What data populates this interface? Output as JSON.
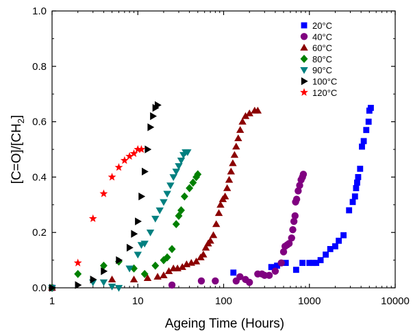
{
  "chart_data": {
    "type": "scatter",
    "title": "",
    "xlabel": "Ageing Time (Hours)",
    "ylabel_main": "[C=O]/[CH",
    "ylabel_sub": "2",
    "ylabel_end": "]",
    "xscale": "log",
    "xlim": [
      1,
      10000
    ],
    "ylim": [
      0.0,
      1.0
    ],
    "x_ticks": [
      1,
      10,
      100,
      1000,
      10000
    ],
    "x_tick_labels": [
      "1",
      "10",
      "100",
      "1000",
      "10000"
    ],
    "y_ticks": [
      0.0,
      0.2,
      0.4,
      0.6,
      0.8,
      1.0
    ],
    "y_tick_labels": [
      "0.0",
      "0.2",
      "0.4",
      "0.6",
      "0.8",
      "1.0"
    ],
    "grid": false,
    "legend_position": "top-right",
    "series": [
      {
        "name": "20°C",
        "color": "#0000ff",
        "marker": "square",
        "points": [
          [
            1,
            0.0
          ],
          [
            130,
            0.055
          ],
          [
            360,
            0.075
          ],
          [
            420,
            0.08
          ],
          [
            530,
            0.09
          ],
          [
            700,
            0.065
          ],
          [
            830,
            0.09
          ],
          [
            1000,
            0.09
          ],
          [
            1100,
            0.09
          ],
          [
            1200,
            0.09
          ],
          [
            1350,
            0.1
          ],
          [
            1550,
            0.12
          ],
          [
            1750,
            0.14
          ],
          [
            2000,
            0.15
          ],
          [
            2200,
            0.17
          ],
          [
            2500,
            0.19
          ],
          [
            2900,
            0.28
          ],
          [
            3200,
            0.31
          ],
          [
            3400,
            0.33
          ],
          [
            3500,
            0.36
          ],
          [
            3600,
            0.38
          ],
          [
            3700,
            0.4
          ],
          [
            3900,
            0.43
          ],
          [
            4100,
            0.51
          ],
          [
            4300,
            0.53
          ],
          [
            4600,
            0.57
          ],
          [
            4900,
            0.6
          ],
          [
            5000,
            0.64
          ],
          [
            5200,
            0.65
          ]
        ]
      },
      {
        "name": "40°C",
        "color": "#800080",
        "marker": "circle",
        "points": [
          [
            1,
            0.0
          ],
          [
            25,
            0.01
          ],
          [
            55,
            0.025
          ],
          [
            80,
            0.025
          ],
          [
            140,
            0.025
          ],
          [
            155,
            0.04
          ],
          [
            180,
            0.03
          ],
          [
            200,
            0.02
          ],
          [
            250,
            0.05
          ],
          [
            280,
            0.05
          ],
          [
            300,
            0.045
          ],
          [
            340,
            0.045
          ],
          [
            400,
            0.06
          ],
          [
            470,
            0.09
          ],
          [
            500,
            0.13
          ],
          [
            520,
            0.15
          ],
          [
            550,
            0.155
          ],
          [
            580,
            0.16
          ],
          [
            620,
            0.18
          ],
          [
            640,
            0.21
          ],
          [
            660,
            0.24
          ],
          [
            680,
            0.26
          ],
          [
            690,
            0.31
          ],
          [
            710,
            0.32
          ],
          [
            740,
            0.35
          ],
          [
            770,
            0.37
          ],
          [
            800,
            0.39
          ],
          [
            830,
            0.4
          ],
          [
            850,
            0.41
          ]
        ]
      },
      {
        "name": "60°C",
        "color": "#8b0000",
        "marker": "triangle-up",
        "points": [
          [
            1,
            0.0
          ],
          [
            5,
            0.03
          ],
          [
            9,
            0.03
          ],
          [
            13,
            0.035
          ],
          [
            17,
            0.04
          ],
          [
            20,
            0.045
          ],
          [
            23,
            0.06
          ],
          [
            26,
            0.07
          ],
          [
            29,
            0.07
          ],
          [
            33,
            0.075
          ],
          [
            37,
            0.085
          ],
          [
            42,
            0.09
          ],
          [
            48,
            0.095
          ],
          [
            54,
            0.11
          ],
          [
            58,
            0.12
          ],
          [
            62,
            0.145
          ],
          [
            66,
            0.16
          ],
          [
            70,
            0.17
          ],
          [
            76,
            0.19
          ],
          [
            82,
            0.23
          ],
          [
            88,
            0.27
          ],
          [
            92,
            0.3
          ],
          [
            98,
            0.32
          ],
          [
            104,
            0.33
          ],
          [
            110,
            0.36
          ],
          [
            116,
            0.39
          ],
          [
            122,
            0.42
          ],
          [
            128,
            0.45
          ],
          [
            134,
            0.48
          ],
          [
            140,
            0.51
          ],
          [
            148,
            0.54
          ],
          [
            156,
            0.57
          ],
          [
            166,
            0.6
          ],
          [
            180,
            0.62
          ],
          [
            200,
            0.63
          ],
          [
            230,
            0.64
          ],
          [
            250,
            0.64
          ]
        ]
      },
      {
        "name": "80°C",
        "color": "#008000",
        "marker": "diamond",
        "points": [
          [
            1,
            0.0
          ],
          [
            2,
            0.05
          ],
          [
            4,
            0.08
          ],
          [
            6,
            0.095
          ],
          [
            9,
            0.07
          ],
          [
            12,
            0.05
          ],
          [
            16,
            0.08
          ],
          [
            20,
            0.1
          ],
          [
            22,
            0.11
          ],
          [
            25,
            0.14
          ],
          [
            28,
            0.23
          ],
          [
            30,
            0.26
          ],
          [
            32,
            0.28
          ],
          [
            35,
            0.33
          ],
          [
            40,
            0.36
          ],
          [
            44,
            0.38
          ],
          [
            48,
            0.4
          ],
          [
            50,
            0.41
          ]
        ]
      },
      {
        "name": "90°C",
        "color": "#008080",
        "marker": "triangle-down",
        "points": [
          [
            1,
            0.0
          ],
          [
            3,
            0.02
          ],
          [
            4,
            0.02
          ],
          [
            5,
            0.005
          ],
          [
            6,
            0.0
          ],
          [
            8,
            0.07
          ],
          [
            10,
            0.12
          ],
          [
            11,
            0.155
          ],
          [
            12,
            0.16
          ],
          [
            14,
            0.2
          ],
          [
            16,
            0.25
          ],
          [
            18,
            0.28
          ],
          [
            20,
            0.31
          ],
          [
            22,
            0.34
          ],
          [
            24,
            0.37
          ],
          [
            26,
            0.4
          ],
          [
            28,
            0.42
          ],
          [
            30,
            0.44
          ],
          [
            32,
            0.46
          ],
          [
            34,
            0.48
          ],
          [
            36,
            0.49
          ],
          [
            38,
            0.49
          ]
        ]
      },
      {
        "name": "100°C",
        "color": "#000000",
        "marker": "triangle-right",
        "points": [
          [
            1,
            0.0
          ],
          [
            2,
            0.01
          ],
          [
            3,
            0.03
          ],
          [
            4,
            0.06
          ],
          [
            6,
            0.1
          ],
          [
            8,
            0.145
          ],
          [
            9,
            0.195
          ],
          [
            10,
            0.24
          ],
          [
            11,
            0.33
          ],
          [
            12,
            0.42
          ],
          [
            13,
            0.5
          ],
          [
            14,
            0.58
          ],
          [
            15,
            0.62
          ],
          [
            16,
            0.65
          ],
          [
            17,
            0.66
          ]
        ]
      },
      {
        "name": "120°C",
        "color": "#ff0000",
        "marker": "star",
        "points": [
          [
            2,
            0.09
          ],
          [
            3,
            0.25
          ],
          [
            4,
            0.34
          ],
          [
            5,
            0.4
          ],
          [
            6,
            0.435
          ],
          [
            7,
            0.46
          ],
          [
            8,
            0.475
          ],
          [
            9,
            0.485
          ],
          [
            10,
            0.5
          ],
          [
            11,
            0.5
          ]
        ]
      }
    ]
  }
}
